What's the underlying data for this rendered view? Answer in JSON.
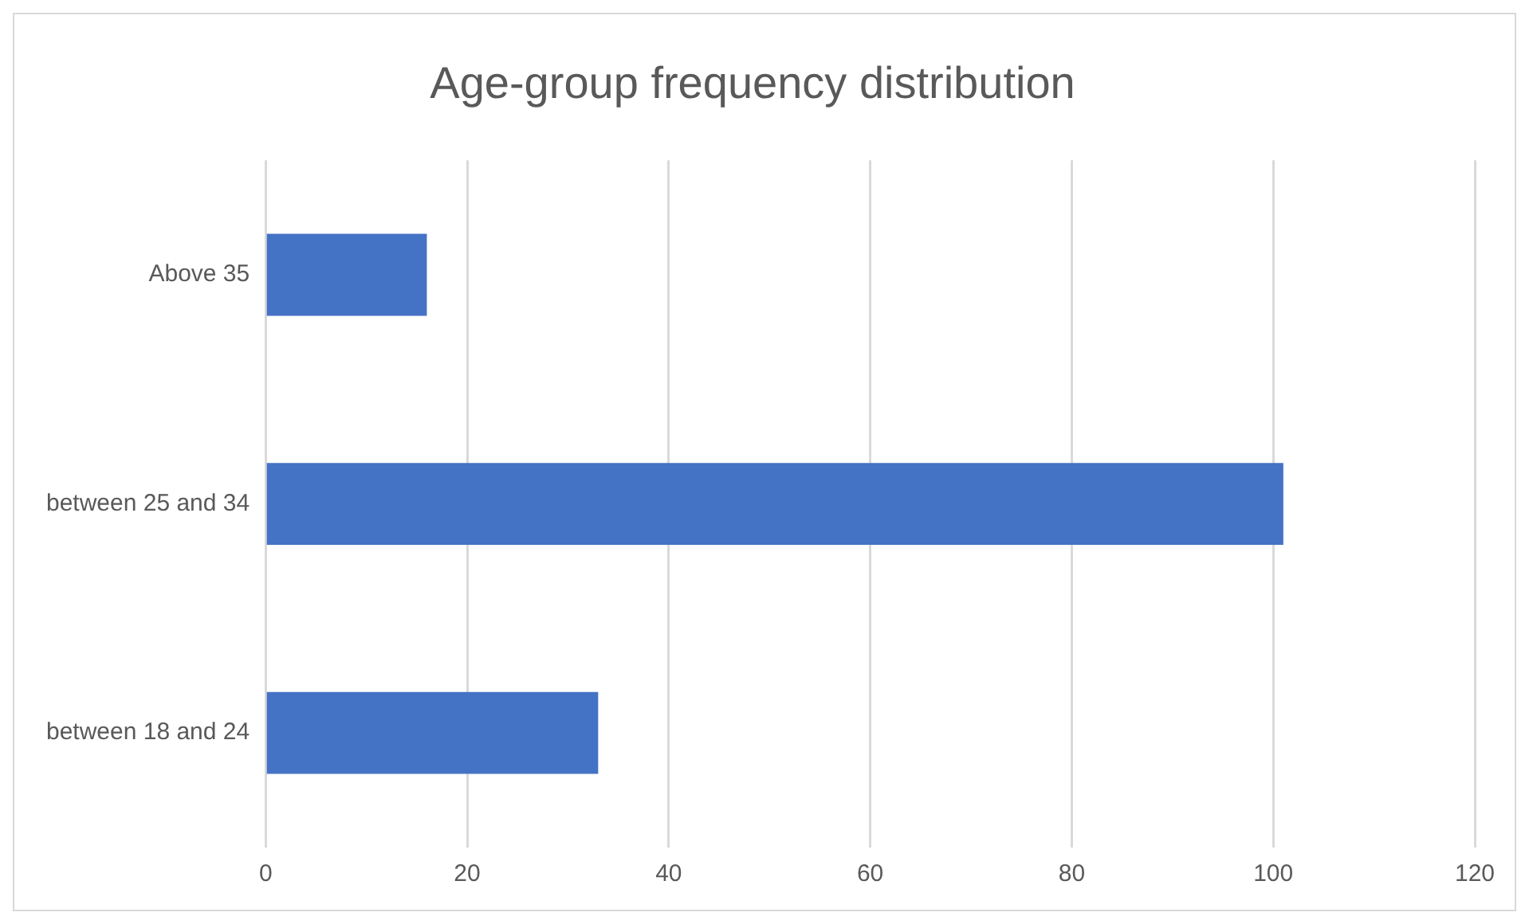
{
  "chart_data": {
    "type": "bar",
    "orientation": "horizontal",
    "title": "Age-group frequency distribution",
    "categories": [
      "Above 35",
      "between 25 and 34",
      "between 18 and 24"
    ],
    "values": [
      16,
      101,
      33
    ],
    "color": "#4472c4",
    "xlim": [
      0,
      120
    ],
    "xticks": [
      0,
      20,
      40,
      60,
      80,
      100,
      120
    ],
    "grid": "x",
    "legend": false
  }
}
